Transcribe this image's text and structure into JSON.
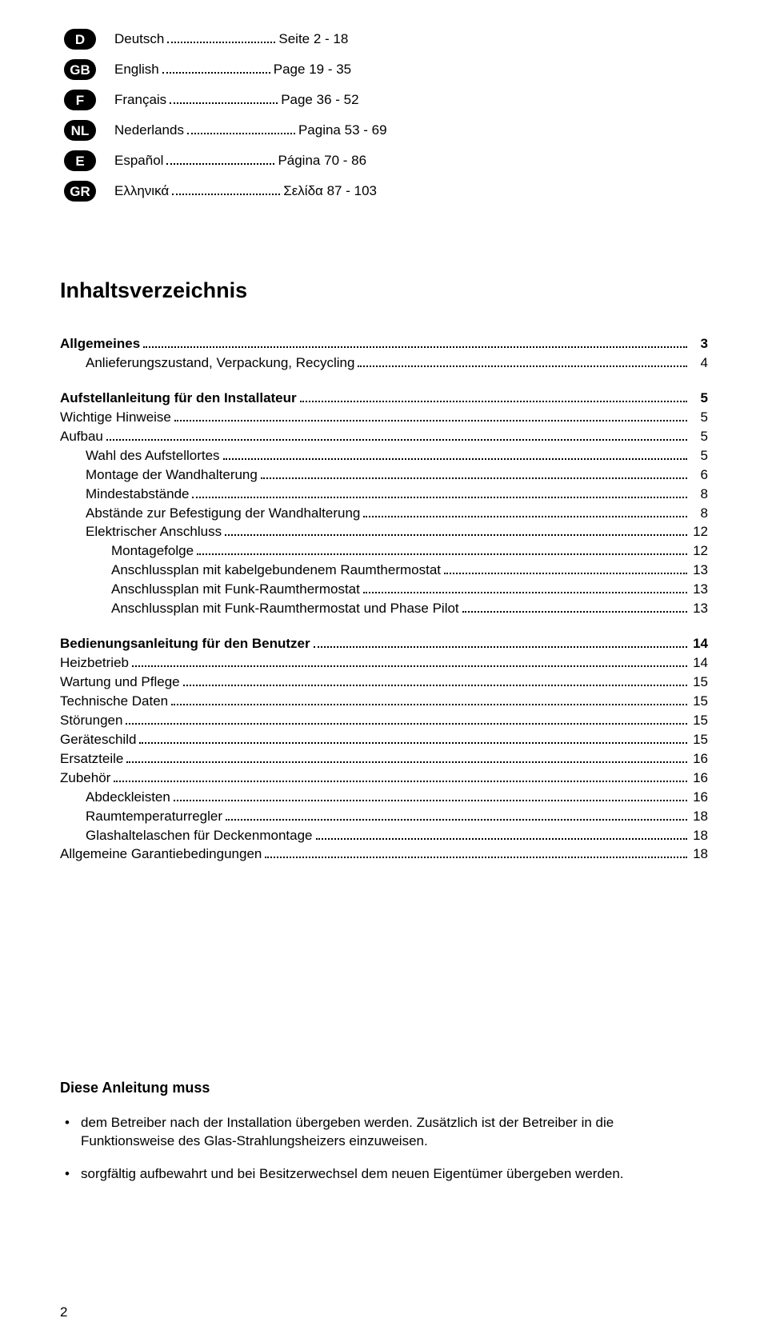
{
  "languages": [
    {
      "code": "D",
      "name": "Deutsch",
      "pageword": "Seite",
      "range": "2 - 18"
    },
    {
      "code": "GB",
      "name": "English",
      "pageword": "Page",
      "range": "19 - 35"
    },
    {
      "code": "F",
      "name": "Français",
      "pageword": "Page",
      "range": "36 - 52"
    },
    {
      "code": "NL",
      "name": "Nederlands",
      "pageword": "Pagina",
      "range": "53 - 69"
    },
    {
      "code": "E",
      "name": "Español",
      "pageword": "Página",
      "range": "70 - 86"
    },
    {
      "code": "GR",
      "name": "Ελληνικά",
      "pageword": "Σελίδα",
      "range": "87 - 103"
    }
  ],
  "toc_title": "Inhaltsverzeichnis",
  "toc": [
    {
      "label": "Allgemeines",
      "page": "3",
      "bold": true,
      "indent": 0
    },
    {
      "label": "Anlieferungszustand, Verpackung, Recycling",
      "page": "4",
      "bold": false,
      "indent": 1
    },
    {
      "gap": true
    },
    {
      "label": "Aufstellanleitung für den Installateur",
      "page": "5",
      "bold": true,
      "indent": 0
    },
    {
      "label": "Wichtige Hinweise",
      "page": "5",
      "bold": false,
      "indent": 0
    },
    {
      "label": "Aufbau",
      "page": "5",
      "bold": false,
      "indent": 0
    },
    {
      "label": "Wahl des Aufstellortes",
      "page": "5",
      "bold": false,
      "indent": 1
    },
    {
      "label": "Montage der Wandhalterung",
      "page": "6",
      "bold": false,
      "indent": 1
    },
    {
      "label": "Mindestabstände",
      "page": "8",
      "bold": false,
      "indent": 1
    },
    {
      "label": "Abstände zur Befestigung der Wandhalterung",
      "page": "8",
      "bold": false,
      "indent": 1
    },
    {
      "label": "Elektrischer Anschluss",
      "page": "12",
      "bold": false,
      "indent": 1
    },
    {
      "label": "Montagefolge",
      "page": "12",
      "bold": false,
      "indent": 2
    },
    {
      "label": "Anschlussplan mit kabelgebundenem Raumthermostat",
      "page": "13",
      "bold": false,
      "indent": 2
    },
    {
      "label": "Anschlussplan mit Funk-Raumthermostat",
      "page": "13",
      "bold": false,
      "indent": 2
    },
    {
      "label": "Anschlussplan mit Funk-Raumthermostat und Phase Pilot",
      "page": "13",
      "bold": false,
      "indent": 2
    },
    {
      "gap": true
    },
    {
      "label": "Bedienungsanleitung für den Benutzer",
      "page": "14",
      "bold": true,
      "indent": 0
    },
    {
      "label": "Heizbetrieb",
      "page": "14",
      "bold": false,
      "indent": 0
    },
    {
      "label": "Wartung und Pflege",
      "page": "15",
      "bold": false,
      "indent": 0
    },
    {
      "label": "Technische Daten",
      "page": "15",
      "bold": false,
      "indent": 0
    },
    {
      "label": "Störungen",
      "page": "15",
      "bold": false,
      "indent": 0
    },
    {
      "label": "Geräteschild",
      "page": "15",
      "bold": false,
      "indent": 0
    },
    {
      "label": "Ersatzteile",
      "page": "16",
      "bold": false,
      "indent": 0
    },
    {
      "label": "Zubehör",
      "page": "16",
      "bold": false,
      "indent": 0
    },
    {
      "label": "Abdeckleisten",
      "page": "16",
      "bold": false,
      "indent": 1
    },
    {
      "label": "Raumtemperaturregler",
      "page": "18",
      "bold": false,
      "indent": 1
    },
    {
      "label": "Glashaltelaschen für Deckenmontage",
      "page": "18",
      "bold": false,
      "indent": 1
    },
    {
      "label": "Allgemeine Garantiebedingungen",
      "page": "18",
      "bold": false,
      "indent": 0
    }
  ],
  "bottom": {
    "heading": "Diese Anleitung muss",
    "bullets": [
      "dem Betreiber nach der Installation übergeben werden. Zusätzlich ist der Betreiber in die Funktionsweise des Glas-Strahlungsheizers einzuweisen.",
      "sorgfältig aufbewahrt und bei Besitzerwechsel dem neuen Eigentümer übergeben werden."
    ]
  },
  "page_number": "2"
}
